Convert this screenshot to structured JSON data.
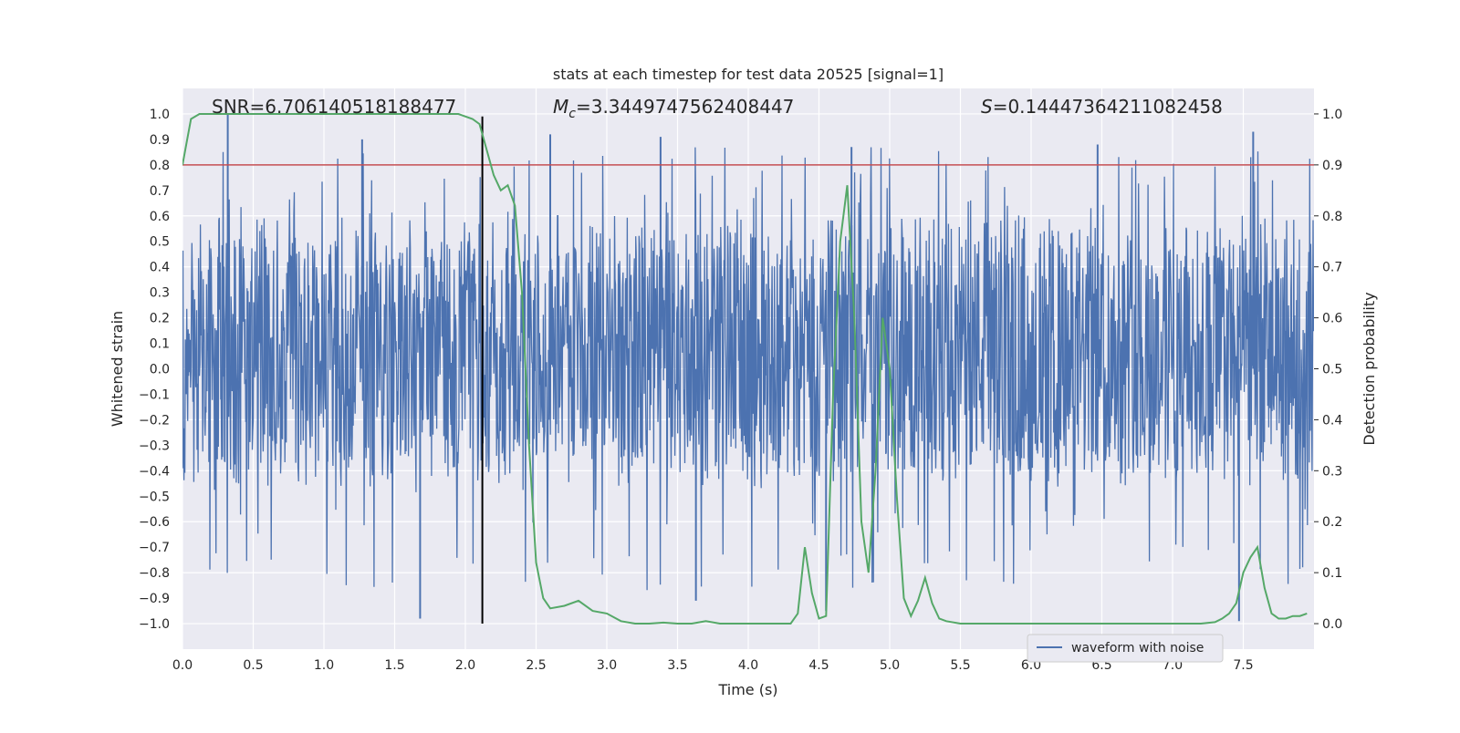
{
  "chart_data": {
    "type": "line",
    "title": "stats at each timestep for test data 20525 [signal=1]",
    "xlabel": "Time (s)",
    "ylabel_left": "Whitened strain",
    "ylabel_right": "Detection probability",
    "xlim": [
      0.0,
      8.0
    ],
    "ylim_left": [
      -1.1,
      1.1
    ],
    "ylim_right": [
      -0.05,
      1.05
    ],
    "xticks": [
      "0.0",
      "0.5",
      "1.0",
      "1.5",
      "2.0",
      "2.5",
      "3.0",
      "3.5",
      "4.0",
      "4.5",
      "5.0",
      "5.5",
      "6.0",
      "6.5",
      "7.0",
      "7.5"
    ],
    "yticks_left": [
      "-1.0",
      "-0.9",
      "-0.8",
      "-0.7",
      "-0.6",
      "-0.5",
      "-0.4",
      "-0.3",
      "-0.2",
      "-0.1",
      "0.0",
      "0.1",
      "0.2",
      "0.3",
      "0.4",
      "0.5",
      "0.6",
      "0.7",
      "0.8",
      "0.9",
      "1.0"
    ],
    "yticks_right": [
      "0.0",
      "0.1",
      "0.2",
      "0.3",
      "0.4",
      "0.5",
      "0.6",
      "0.7",
      "0.8",
      "0.9",
      "1.0"
    ],
    "grid": true,
    "legend_position": "lower-right",
    "stats": {
      "snr": "SNR=6.706140518188477",
      "mc_symbol": "M",
      "mc_sub": "c",
      "mc_value": "=3.3449747562408447",
      "s_symbol": "S",
      "s_value": "=0.14447364211082458"
    },
    "threshold_line": {
      "axis": "right",
      "value": 0.9,
      "color": "#c44e52"
    },
    "event_marker": {
      "x": 2.12,
      "y_range": [
        -1.0,
        0.99
      ],
      "color": "#000000"
    },
    "series": [
      {
        "name": "waveform with noise",
        "axis": "left",
        "color": "#4c72b0",
        "kind": "noise-band",
        "x_range": [
          0.0,
          8.0
        ],
        "typical_range": [
          -0.42,
          0.58
        ],
        "peak_spikes": [
          {
            "x": 0.32,
            "y": 1.0
          },
          {
            "x": 1.27,
            "y": 0.9
          },
          {
            "x": 2.6,
            "y": 0.92
          },
          {
            "x": 3.38,
            "y": 0.91
          },
          {
            "x": 4.73,
            "y": 0.87
          },
          {
            "x": 6.47,
            "y": 0.88
          },
          {
            "x": 7.57,
            "y": 0.93
          },
          {
            "x": 1.68,
            "y": -0.98
          },
          {
            "x": 7.47,
            "y": -0.99
          },
          {
            "x": 4.55,
            "y": -0.95
          },
          {
            "x": 3.63,
            "y": -0.91
          }
        ]
      },
      {
        "name": "detection probability",
        "axis": "right",
        "color": "#55a868",
        "x": [
          0.0,
          0.02,
          0.06,
          0.12,
          0.3,
          0.6,
          0.9,
          1.2,
          1.5,
          1.8,
          1.95,
          2.05,
          2.1,
          2.15,
          2.2,
          2.25,
          2.3,
          2.35,
          2.4,
          2.45,
          2.5,
          2.55,
          2.6,
          2.7,
          2.8,
          2.9,
          3.0,
          3.1,
          3.2,
          3.3,
          3.4,
          3.5,
          3.6,
          3.7,
          3.8,
          3.9,
          4.0,
          4.1,
          4.2,
          4.3,
          4.35,
          4.4,
          4.45,
          4.5,
          4.55,
          4.6,
          4.65,
          4.7,
          4.75,
          4.8,
          4.85,
          4.9,
          4.95,
          5.0,
          5.05,
          5.1,
          5.15,
          5.2,
          5.25,
          5.3,
          5.35,
          5.4,
          5.5,
          5.6,
          5.7,
          5.8,
          6.0,
          6.2,
          6.5,
          6.8,
          7.0,
          7.2,
          7.3,
          7.35,
          7.4,
          7.45,
          7.5,
          7.55,
          7.6,
          7.65,
          7.7,
          7.75,
          7.8,
          7.85,
          7.9,
          7.95
        ],
        "y": [
          0.9,
          0.93,
          0.99,
          1.0,
          1.0,
          1.0,
          1.0,
          1.0,
          1.0,
          1.0,
          1.0,
          0.99,
          0.98,
          0.93,
          0.88,
          0.85,
          0.86,
          0.82,
          0.65,
          0.35,
          0.12,
          0.05,
          0.03,
          0.035,
          0.045,
          0.025,
          0.02,
          0.005,
          0.0,
          0.0,
          0.002,
          0.0,
          0.0,
          0.005,
          0.0,
          0.0,
          0.0,
          0.0,
          0.0,
          0.0,
          0.02,
          0.15,
          0.06,
          0.01,
          0.015,
          0.45,
          0.75,
          0.86,
          0.6,
          0.2,
          0.1,
          0.3,
          0.6,
          0.5,
          0.25,
          0.05,
          0.015,
          0.045,
          0.09,
          0.04,
          0.01,
          0.005,
          0.0,
          0.0,
          0.0,
          0.0,
          0.0,
          0.0,
          0.0,
          0.0,
          0.0,
          0.0,
          0.003,
          0.01,
          0.02,
          0.04,
          0.1,
          0.13,
          0.15,
          0.07,
          0.02,
          0.01,
          0.01,
          0.015,
          0.015,
          0.02
        ]
      }
    ]
  }
}
